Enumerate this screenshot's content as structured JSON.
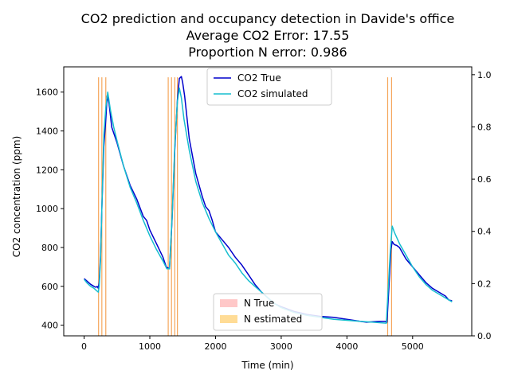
{
  "chart_data": {
    "type": "line",
    "title_lines": [
      "CO2 prediction and occupancy detection in Davide's office",
      "Average CO2 Error: 17.55",
      "Proportion N error: 0.986"
    ],
    "xlabel": "Time (min)",
    "ylabel": "CO2 concentration (ppm)",
    "xlim": [
      -310,
      5900
    ],
    "ylim": [
      345,
      1730
    ],
    "y2lim": [
      0,
      1.03
    ],
    "x_ticks": [
      0,
      1000,
      2000,
      3000,
      4000,
      5000
    ],
    "y_ticks": [
      400,
      600,
      800,
      1000,
      1200,
      1400,
      1600
    ],
    "y2_ticks": [
      0.0,
      0.2,
      0.4,
      0.6,
      0.8,
      1.0
    ],
    "x_tick_labels": [
      "0",
      "1000",
      "2000",
      "3000",
      "4000",
      "5000"
    ],
    "y_tick_labels": [
      "400",
      "600",
      "800",
      "1000",
      "1200",
      "1400",
      "1600"
    ],
    "y2_tick_labels": [
      "0.0",
      "0.2",
      "0.4",
      "0.6",
      "0.8",
      "1.0"
    ],
    "legend_top": {
      "placement": "upper center",
      "entries": [
        {
          "label": "CO2 True",
          "color": "#0000cc"
        },
        {
          "label": "CO2 simulated",
          "color": "#17becf"
        }
      ]
    },
    "legend_bottom": {
      "placement": "lower center",
      "entries": [
        {
          "label": "N True",
          "color": "#ffc8c8"
        },
        {
          "label": "N estimated",
          "color": "#ffdc96"
        }
      ]
    },
    "series": [
      {
        "name": "CO2 True",
        "color": "#0000cc",
        "x": [
          0,
          50,
          100,
          150,
          180,
          200,
          215,
          230,
          250,
          270,
          300,
          330,
          350,
          380,
          420,
          500,
          600,
          700,
          800,
          900,
          950,
          1000,
          1100,
          1200,
          1250,
          1300,
          1340,
          1380,
          1420,
          1450,
          1480,
          1500,
          1530,
          1600,
          1700,
          1800,
          1850,
          1900,
          1950,
          2000,
          2100,
          2200,
          2300,
          2400,
          2500,
          2600,
          2700,
          2800,
          2900,
          3000,
          3200,
          3400,
          3600,
          3800,
          4000,
          4200,
          4300,
          4400,
          4500,
          4580,
          4610,
          4640,
          4670,
          4690,
          4720,
          4760,
          4800,
          4850,
          4900,
          5000,
          5100,
          5200,
          5300,
          5400,
          5500,
          5550,
          5600
        ],
        "y": [
          640,
          625,
          610,
          600,
          595,
          600,
          590,
          620,
          760,
          1000,
          1320,
          1460,
          1580,
          1540,
          1420,
          1340,
          1220,
          1120,
          1050,
          960,
          940,
          890,
          820,
          750,
          700,
          690,
          950,
          1300,
          1560,
          1670,
          1680,
          1650,
          1580,
          1360,
          1180,
          1060,
          1010,
          990,
          940,
          880,
          840,
          800,
          750,
          710,
          660,
          610,
          570,
          540,
          510,
          495,
          470,
          455,
          445,
          440,
          430,
          420,
          415,
          418,
          420,
          420,
          415,
          600,
          790,
          830,
          815,
          810,
          800,
          770,
          740,
          700,
          660,
          620,
          590,
          570,
          550,
          530,
          525
        ]
      },
      {
        "name": "CO2 simulated",
        "color": "#17becf",
        "x": [
          0,
          50,
          100,
          150,
          180,
          200,
          215,
          230,
          250,
          270,
          300,
          330,
          360,
          400,
          450,
          500,
          600,
          700,
          800,
          900,
          1000,
          1100,
          1200,
          1260,
          1300,
          1340,
          1380,
          1420,
          1450,
          1480,
          1520,
          1600,
          1700,
          1800,
          1900,
          2000,
          2100,
          2200,
          2300,
          2400,
          2500,
          2600,
          2700,
          2800,
          2900,
          3000,
          3200,
          3400,
          3600,
          3800,
          4000,
          4200,
          4400,
          4600,
          4630,
          4660,
          4690,
          4720,
          4800,
          4900,
          5000,
          5100,
          5200,
          5300,
          5400,
          5500,
          5600
        ],
        "y": [
          635,
          615,
          600,
          590,
          580,
          575,
          570,
          600,
          740,
          1000,
          1380,
          1520,
          1600,
          1510,
          1420,
          1350,
          1220,
          1110,
          1030,
          940,
          860,
          790,
          730,
          690,
          690,
          960,
          1320,
          1550,
          1620,
          1570,
          1460,
          1300,
          1140,
          1030,
          950,
          880,
          820,
          760,
          720,
          670,
          630,
          600,
          570,
          540,
          510,
          490,
          465,
          450,
          440,
          430,
          425,
          420,
          415,
          410,
          600,
          780,
          910,
          880,
          820,
          760,
          700,
          650,
          610,
          580,
          560,
          540,
          520
        ]
      }
    ],
    "n_estimated_x": [
      220,
      270,
      330,
      1280,
      1330,
      1380,
      1420,
      4620,
      4680
    ],
    "n_true_x": []
  }
}
